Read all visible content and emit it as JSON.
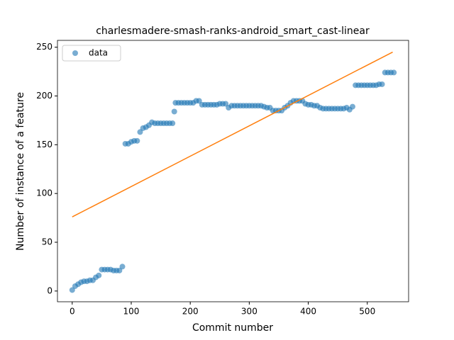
{
  "chart_data": {
    "type": "scatter",
    "title": "charlesmadere-smash-ranks-android_smart_cast-linear",
    "xlabel": "Commit number",
    "ylabel": "Number of instance of a feature",
    "xlim": [
      -25,
      570
    ],
    "ylim": [
      -11,
      257
    ],
    "xticks": [
      0,
      100,
      200,
      300,
      400,
      500
    ],
    "yticks": [
      0,
      50,
      100,
      150,
      200,
      250
    ],
    "grid": false,
    "legend": "upper left",
    "series": [
      {
        "name": "data",
        "type": "scatter",
        "color": "#1f77b4",
        "x": [
          0,
          5,
          10,
          15,
          20,
          25,
          30,
          35,
          40,
          45,
          50,
          55,
          60,
          65,
          70,
          75,
          80,
          85,
          90,
          95,
          100,
          105,
          110,
          115,
          120,
          125,
          130,
          135,
          140,
          145,
          150,
          155,
          160,
          165,
          170,
          173,
          175,
          180,
          185,
          190,
          195,
          200,
          205,
          210,
          215,
          220,
          225,
          230,
          235,
          240,
          245,
          250,
          255,
          260,
          265,
          270,
          275,
          280,
          285,
          290,
          295,
          300,
          305,
          310,
          315,
          320,
          325,
          330,
          335,
          340,
          345,
          350,
          355,
          360,
          365,
          370,
          375,
          380,
          385,
          390,
          395,
          400,
          405,
          410,
          415,
          420,
          425,
          430,
          435,
          440,
          445,
          450,
          455,
          460,
          465,
          470,
          475,
          480,
          485,
          490,
          495,
          500,
          505,
          510,
          515,
          520,
          525,
          530,
          535,
          540,
          545
        ],
        "values": [
          1,
          5,
          7,
          9,
          10,
          10,
          11,
          11,
          14,
          16,
          22,
          22,
          22,
          22,
          21,
          21,
          21,
          25,
          151,
          151,
          153,
          154,
          154,
          163,
          167,
          168,
          170,
          173,
          172,
          172,
          172,
          172,
          172,
          172,
          172,
          184,
          193,
          193,
          193,
          193,
          193,
          193,
          193,
          195,
          195,
          191,
          191,
          191,
          191,
          191,
          191,
          192,
          192,
          192,
          188,
          190,
          190,
          190,
          190,
          190,
          190,
          190,
          190,
          190,
          190,
          190,
          189,
          188,
          188,
          185,
          185,
          185,
          185,
          188,
          190,
          193,
          195,
          195,
          195,
          195,
          192,
          191,
          191,
          190,
          190,
          188,
          187,
          187,
          187,
          187,
          187,
          187,
          187,
          187,
          188,
          186,
          189,
          211,
          211,
          211,
          211,
          211,
          211,
          211,
          211,
          212,
          212,
          224,
          224,
          224,
          224
        ]
      },
      {
        "type": "line",
        "color": "#ff7f0e",
        "x": [
          0,
          543
        ],
        "values": [
          76,
          245
        ]
      }
    ]
  }
}
